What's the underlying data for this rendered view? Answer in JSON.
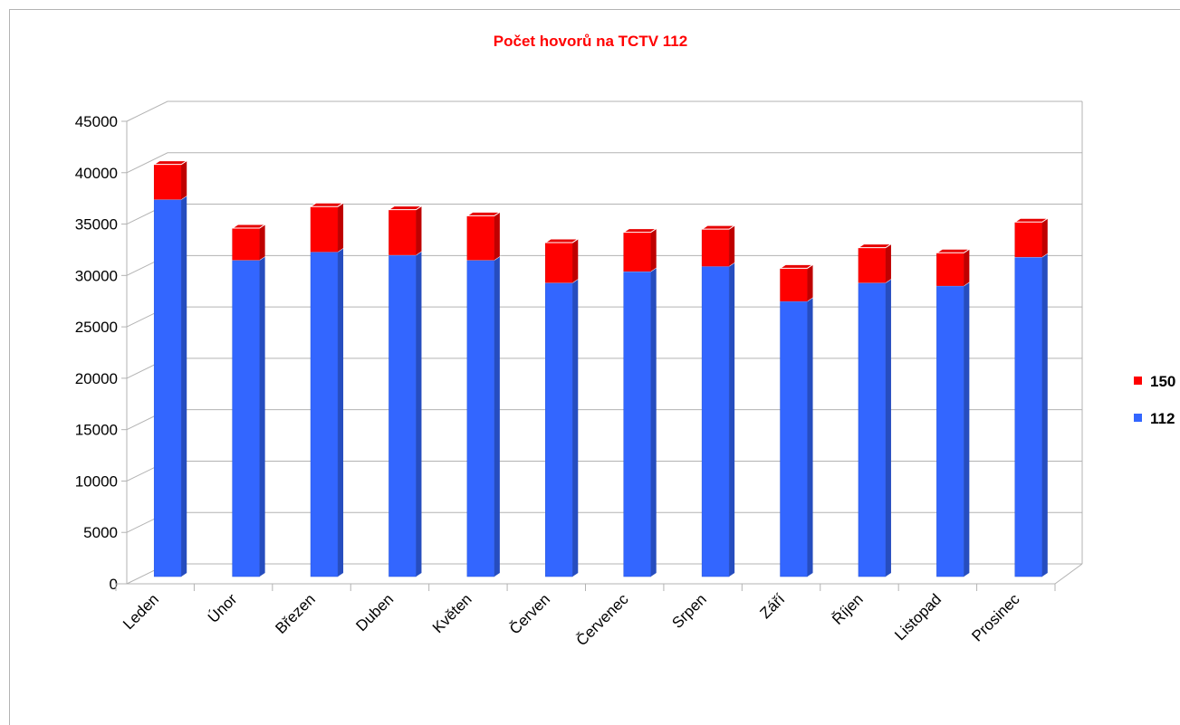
{
  "chart_data": {
    "type": "bar3d_stacked",
    "title": "Počet hovorů na TCTV 112",
    "categories": [
      "Leden",
      "Únor",
      "Březen",
      "Duben",
      "Květen",
      "Červen",
      "Červenec",
      "Srpen",
      "Září",
      "Říjen",
      "Listopad",
      "Prosinec"
    ],
    "series": [
      {
        "name": "112",
        "color": "#3366ff",
        "values": [
          36700,
          30800,
          31600,
          31300,
          30800,
          28600,
          29700,
          30200,
          26800,
          28600,
          28300,
          31100
        ]
      },
      {
        "name": "150",
        "color": "#ff0000",
        "values": [
          3400,
          3100,
          4400,
          4400,
          4300,
          3900,
          3800,
          3600,
          3200,
          3400,
          3200,
          3400
        ]
      }
    ],
    "ylim": [
      0,
      45000
    ],
    "yticks": [
      0,
      5000,
      10000,
      15000,
      20000,
      25000,
      30000,
      35000,
      40000,
      45000
    ],
    "grid": true,
    "legend": "right"
  }
}
